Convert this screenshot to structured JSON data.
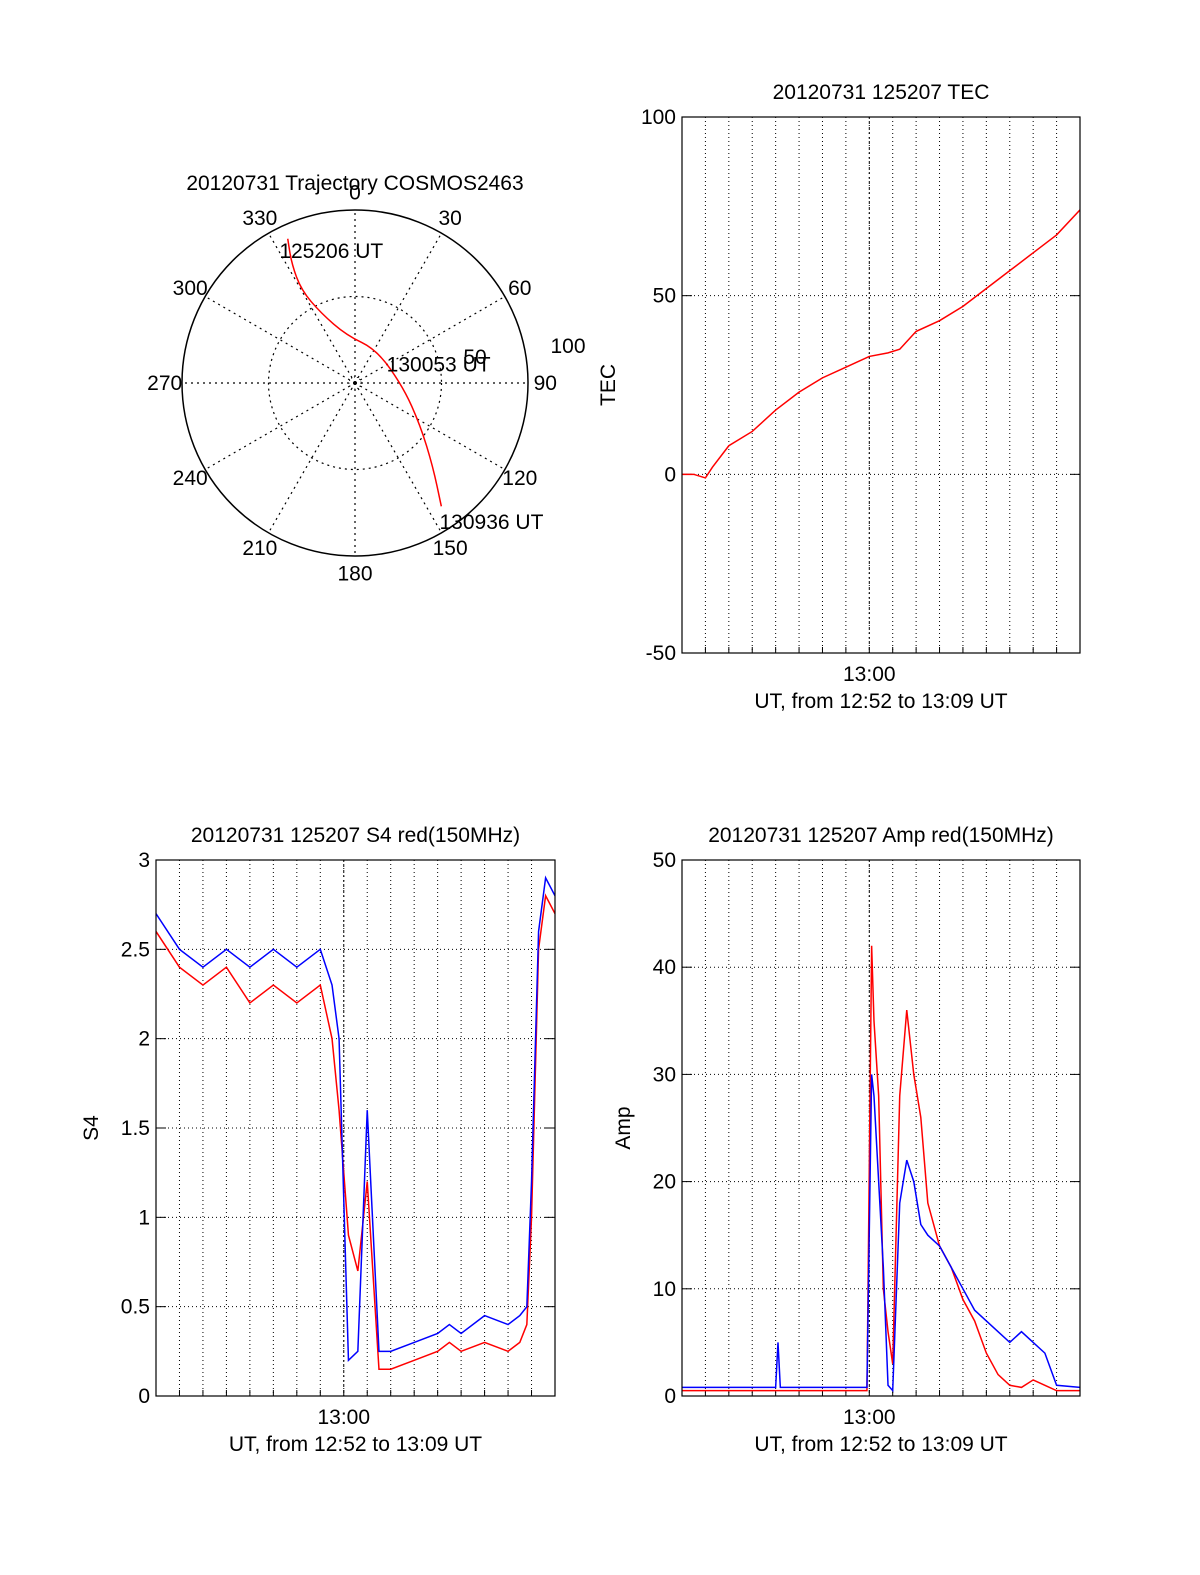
{
  "chart_data": [
    {
      "type": "polar",
      "title": "20120731 Trajectory COSMOS2463",
      "azimuth_labels": [
        "0",
        "30",
        "60",
        "90",
        "120",
        "150",
        "180",
        "210",
        "240",
        "270",
        "300",
        "330"
      ],
      "elevation_ring_labels": [
        "50",
        "100"
      ],
      "trajectory_color": "#ff0000",
      "trajectory": [
        {
          "az": 335,
          "r": 92
        },
        {
          "az": 332,
          "r": 78
        },
        {
          "az": 330,
          "r": 62
        },
        {
          "az": 334,
          "r": 45
        },
        {
          "az": 350,
          "r": 28
        },
        {
          "az": 33,
          "r": 23
        },
        {
          "az": 95,
          "r": 28
        },
        {
          "az": 123,
          "r": 45
        },
        {
          "az": 137,
          "r": 66
        },
        {
          "az": 145,
          "r": 87
        }
      ],
      "annotations": [
        {
          "text": "125206 UT",
          "az": 332,
          "r": 87
        },
        {
          "text": "130053 UT",
          "az": 62,
          "r": 24
        },
        {
          "text": "130936 UT",
          "az": 147,
          "r": 95
        }
      ]
    },
    {
      "type": "line",
      "title": "20120731 125207 TEC",
      "xlabel": "UT, from 12:52 to 13:09 UT",
      "ylabel": "TEC",
      "xlim": [
        0,
        17
      ],
      "ylim": [
        -50,
        100
      ],
      "yticks": [
        -50,
        0,
        50,
        100
      ],
      "xtick_labels": [
        {
          "x": 8,
          "label": "13:00"
        }
      ],
      "grid": true,
      "series": [
        {
          "color": "#ff0000",
          "x": [
            0,
            0.5,
            1,
            1.3,
            2,
            3,
            4,
            5,
            6,
            7,
            8,
            8.8,
            9.3,
            10,
            11,
            12,
            13,
            14,
            15,
            16,
            17
          ],
          "y": [
            0,
            0,
            -1,
            2,
            8,
            12,
            18,
            23,
            27,
            30,
            33,
            34,
            35,
            40,
            43,
            47,
            52,
            57,
            62,
            67,
            74
          ]
        }
      ]
    },
    {
      "type": "line",
      "title": "20120731 125207 S4 red(150MHz)",
      "xlabel": "UT, from 12:52 to 13:09 UT",
      "ylabel": "S4",
      "xlim": [
        0,
        17
      ],
      "ylim": [
        0,
        3
      ],
      "yticks": [
        0,
        0.5,
        1,
        1.5,
        2,
        2.5,
        3
      ],
      "xtick_labels": [
        {
          "x": 8,
          "label": "13:00"
        }
      ],
      "grid": true,
      "series": [
        {
          "color": "#ff0000",
          "x": [
            0,
            1,
            2,
            3,
            4,
            5,
            6,
            7,
            7.5,
            7.8,
            8.2,
            8.6,
            9,
            9.5,
            10,
            11,
            12,
            12.5,
            13,
            14,
            15,
            15.5,
            15.8,
            16,
            16.3,
            16.6,
            17
          ],
          "y": [
            2.6,
            2.4,
            2.3,
            2.4,
            2.2,
            2.3,
            2.2,
            2.3,
            2.0,
            1.6,
            0.9,
            0.7,
            1.2,
            0.15,
            0.15,
            0.2,
            0.25,
            0.3,
            0.25,
            0.3,
            0.25,
            0.3,
            0.4,
            1.0,
            2.5,
            2.8,
            2.7
          ]
        },
        {
          "color": "#0000ff",
          "x": [
            0,
            1,
            2,
            3,
            4,
            5,
            6,
            7,
            7.5,
            7.8,
            8.2,
            8.6,
            9,
            9.5,
            10,
            11,
            12,
            12.5,
            13,
            14,
            15,
            15.5,
            15.8,
            16,
            16.3,
            16.6,
            17
          ],
          "y": [
            2.7,
            2.5,
            2.4,
            2.5,
            2.4,
            2.5,
            2.4,
            2.5,
            2.3,
            2.0,
            0.2,
            0.25,
            1.6,
            0.25,
            0.25,
            0.3,
            0.35,
            0.4,
            0.35,
            0.45,
            0.4,
            0.45,
            0.5,
            1.2,
            2.6,
            2.9,
            2.8
          ]
        }
      ]
    },
    {
      "type": "line",
      "title": "20120731 125207 Amp red(150MHz)",
      "xlabel": "UT, from 12:52 to 13:09 UT",
      "ylabel": "Amp",
      "xlim": [
        0,
        17
      ],
      "ylim": [
        0,
        50
      ],
      "yticks": [
        0,
        10,
        20,
        30,
        40,
        50
      ],
      "xtick_labels": [
        {
          "x": 8,
          "label": "13:00"
        }
      ],
      "grid": true,
      "series": [
        {
          "color": "#ff0000",
          "x": [
            0,
            4,
            7.9,
            8.1,
            8.2,
            8.4,
            8.6,
            8.8,
            9.0,
            9.3,
            9.6,
            9.9,
            10.2,
            10.5,
            11,
            11.5,
            12,
            12.5,
            13,
            13.5,
            14,
            14.5,
            15,
            15.5,
            16,
            17
          ],
          "y": [
            0.5,
            0.5,
            0.5,
            42,
            35,
            28,
            10,
            6,
            3,
            28,
            36,
            30,
            26,
            18,
            14,
            12,
            9,
            7,
            4,
            2,
            1,
            0.8,
            1.5,
            1,
            0.5,
            0.5
          ]
        },
        {
          "color": "#0000ff",
          "x": [
            0,
            4,
            4.1,
            4.2,
            7.9,
            8.1,
            8.2,
            8.4,
            8.6,
            8.8,
            9.0,
            9.3,
            9.6,
            9.9,
            10.2,
            10.5,
            11,
            11.5,
            12,
            12.5,
            13,
            13.5,
            14,
            14.5,
            15,
            15.5,
            16,
            17
          ],
          "y": [
            0.8,
            0.8,
            5,
            0.8,
            0.8,
            30,
            28,
            20,
            12,
            1,
            0.5,
            18,
            22,
            20,
            16,
            15,
            14,
            12,
            10,
            8,
            7,
            6,
            5,
            6,
            5,
            4,
            1,
            0.8
          ]
        }
      ]
    }
  ]
}
